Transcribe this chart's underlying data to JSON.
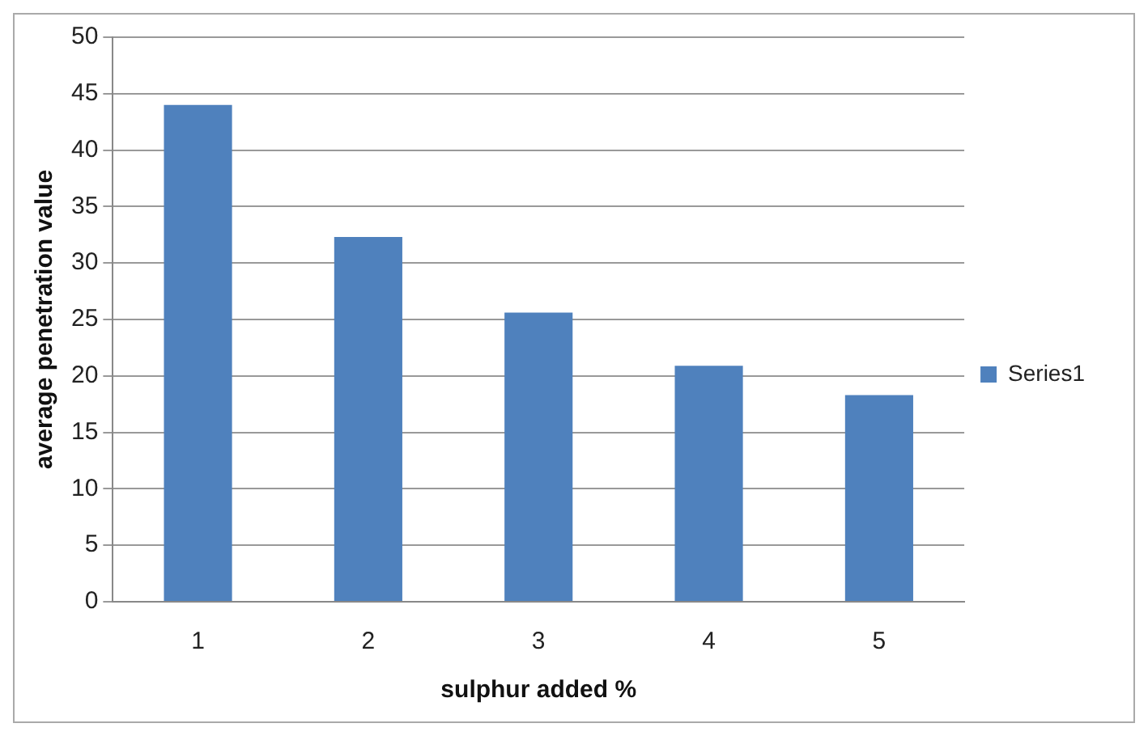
{
  "chart_data": {
    "type": "bar",
    "xlabel": "sulphur added %",
    "ylabel": "average penetration value",
    "categories": [
      "1",
      "2",
      "3",
      "4",
      "5"
    ],
    "series": [
      {
        "name": "Series1",
        "color": "#4f81bd",
        "values": [
          44,
          32.3,
          25.6,
          20.9,
          18.3
        ]
      }
    ],
    "ylim": [
      0,
      50
    ],
    "yticks": [
      0,
      5,
      10,
      15,
      20,
      25,
      30,
      35,
      40,
      45,
      50
    ],
    "grid": "y",
    "legend": "right"
  }
}
